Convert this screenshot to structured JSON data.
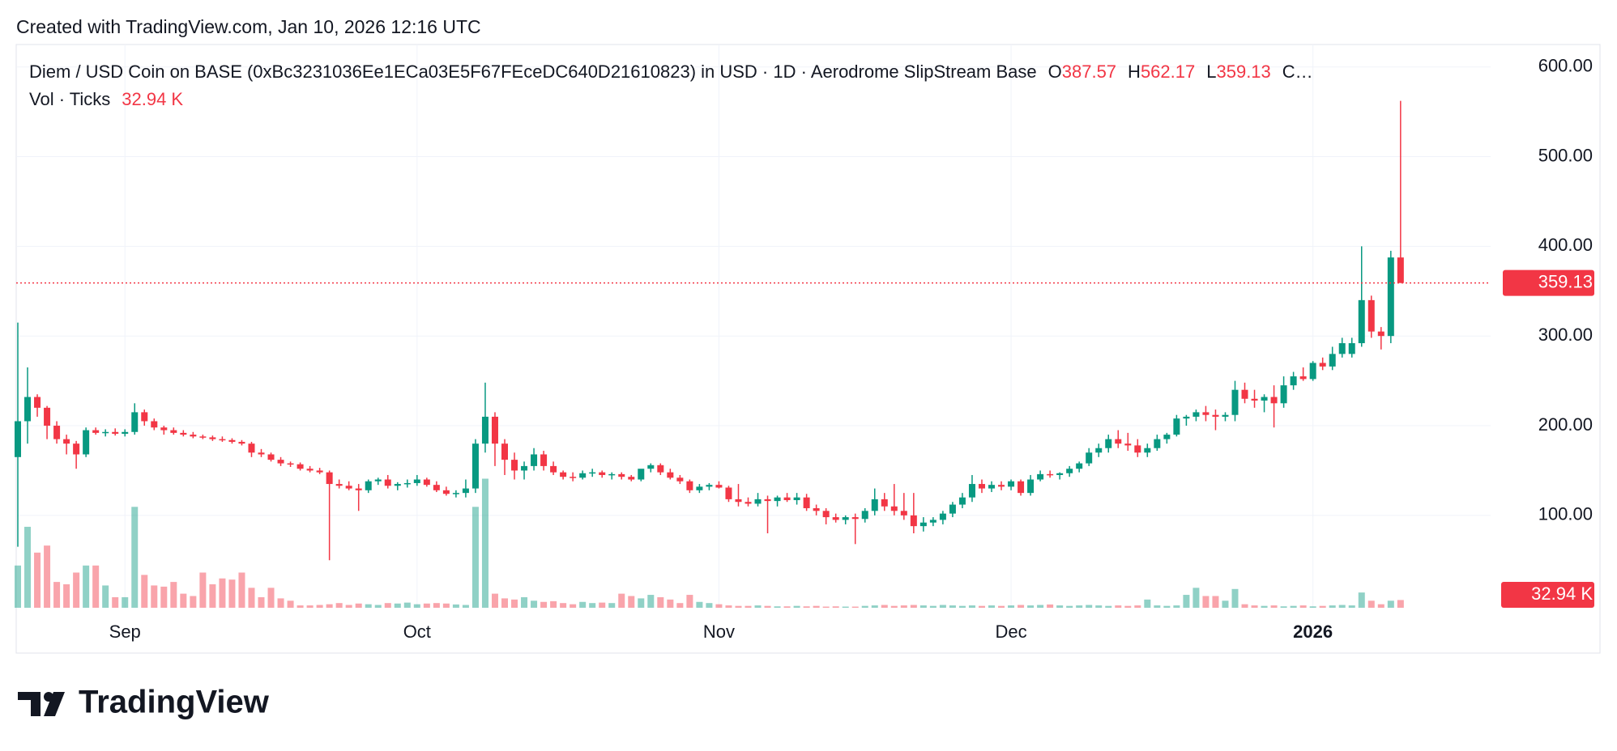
{
  "header": {
    "created": "Created with TradingView.com, Jan 10, 2026 12:16 UTC",
    "brand": "TradingView"
  },
  "chart_data": {
    "type": "candlestick",
    "title": "Diem / USD Coin on BASE (0xBc3231036Ee1ECa03E5F67FEceDC640D21610823) in USD · 1D · Aerodrome SlipStream Base",
    "ohlc_labels": [
      "O",
      "H",
      "L",
      "C…"
    ],
    "volume_title": "Vol · Ticks",
    "volume_label": "32.94 K",
    "up_color": "#089981",
    "down_color": "#f23645",
    "ylim": [
      -3,
      625
    ],
    "yticks": [
      {
        "value": 100,
        "label": "100.00"
      },
      {
        "value": 200,
        "label": "200.00"
      },
      {
        "value": 300,
        "label": "300.00"
      },
      {
        "value": 400,
        "label": "400.00"
      },
      {
        "value": 500,
        "label": "500.00"
      },
      {
        "value": 600,
        "label": "600.00"
      }
    ],
    "volume_lim": [
      0,
      2400
    ],
    "xticks": [
      {
        "value": 11,
        "label": "Sep"
      },
      {
        "value": 41,
        "label": "Oct"
      },
      {
        "value": 72,
        "label": "Nov"
      },
      {
        "value": 102,
        "label": "Dec"
      },
      {
        "value": 133,
        "label": "2026"
      }
    ],
    "grid": true,
    "candles": [
      [
        165,
        315,
        65,
        205,
        180
      ],
      [
        205,
        265,
        180,
        232,
        345
      ],
      [
        232,
        235,
        210,
        220,
        235
      ],
      [
        220,
        222,
        185,
        200,
        265
      ],
      [
        200,
        205,
        180,
        185,
        110
      ],
      [
        185,
        190,
        168,
        180,
        100
      ],
      [
        180,
        183,
        152,
        168,
        150
      ],
      [
        168,
        198,
        165,
        195,
        180
      ],
      [
        195,
        198,
        190,
        192,
        180
      ],
      [
        192,
        196,
        188,
        193,
        95
      ],
      [
        193,
        197,
        189,
        191,
        45
      ],
      [
        191,
        196,
        188,
        193,
        45
      ],
      [
        193,
        225,
        190,
        215,
        430
      ],
      [
        215,
        218,
        200,
        205,
        140
      ],
      [
        205,
        208,
        195,
        198,
        95
      ],
      [
        198,
        200,
        190,
        195,
        90
      ],
      [
        195,
        198,
        190,
        192,
        110
      ],
      [
        192,
        195,
        188,
        190,
        60
      ],
      [
        190,
        193,
        186,
        188,
        50
      ],
      [
        188,
        190,
        185,
        187,
        150
      ],
      [
        187,
        189,
        183,
        185,
        100
      ],
      [
        185,
        188,
        182,
        184,
        125
      ],
      [
        184,
        186,
        180,
        182,
        120
      ],
      [
        182,
        184,
        178,
        180,
        150
      ],
      [
        180,
        182,
        165,
        170,
        85
      ],
      [
        170,
        174,
        165,
        168,
        45
      ],
      [
        168,
        170,
        160,
        162,
        85
      ],
      [
        162,
        165,
        155,
        158,
        40
      ],
      [
        158,
        160,
        154,
        157,
        30
      ],
      [
        157,
        159,
        150,
        152,
        10
      ],
      [
        152,
        155,
        148,
        150,
        10
      ],
      [
        150,
        153,
        146,
        148,
        12
      ],
      [
        148,
        150,
        50,
        135,
        15
      ],
      [
        135,
        140,
        130,
        133,
        20
      ],
      [
        133,
        138,
        128,
        130,
        12
      ],
      [
        130,
        135,
        105,
        128,
        18
      ],
      [
        128,
        140,
        125,
        138,
        15
      ],
      [
        138,
        142,
        134,
        140,
        12
      ],
      [
        140,
        145,
        130,
        133,
        20
      ],
      [
        133,
        137,
        128,
        135,
        18
      ],
      [
        135,
        140,
        131,
        136,
        22
      ],
      [
        136,
        145,
        133,
        140,
        15
      ],
      [
        140,
        142,
        132,
        134,
        18
      ],
      [
        134,
        138,
        126,
        128,
        20
      ],
      [
        128,
        132,
        122,
        124,
        18
      ],
      [
        124,
        128,
        120,
        125,
        14
      ],
      [
        125,
        140,
        120,
        130,
        12
      ],
      [
        130,
        185,
        125,
        180,
        430
      ],
      [
        180,
        248,
        170,
        210,
        550
      ],
      [
        210,
        215,
        155,
        180,
        60
      ],
      [
        180,
        185,
        145,
        162,
        40
      ],
      [
        162,
        170,
        140,
        150,
        35
      ],
      [
        150,
        160,
        140,
        155,
        45
      ],
      [
        155,
        175,
        150,
        168,
        30
      ],
      [
        168,
        172,
        150,
        155,
        25
      ],
      [
        155,
        160,
        145,
        148,
        28
      ],
      [
        148,
        150,
        140,
        143,
        20
      ],
      [
        143,
        148,
        138,
        142,
        15
      ],
      [
        142,
        150,
        140,
        147,
        25
      ],
      [
        147,
        152,
        143,
        148,
        20
      ],
      [
        148,
        150,
        142,
        145,
        22
      ],
      [
        145,
        148,
        140,
        146,
        20
      ],
      [
        146,
        148,
        140,
        143,
        60
      ],
      [
        143,
        145,
        138,
        140,
        50
      ],
      [
        140,
        150,
        138,
        152,
        40
      ],
      [
        152,
        158,
        148,
        156,
        55
      ],
      [
        156,
        158,
        145,
        148,
        45
      ],
      [
        148,
        152,
        140,
        142,
        35
      ],
      [
        142,
        145,
        135,
        138,
        20
      ],
      [
        138,
        140,
        125,
        128,
        55
      ],
      [
        128,
        135,
        125,
        132,
        25
      ],
      [
        132,
        136,
        128,
        134,
        20
      ],
      [
        134,
        138,
        130,
        131,
        15
      ],
      [
        131,
        133,
        115,
        118,
        10
      ],
      [
        118,
        135,
        110,
        115,
        8
      ],
      [
        115,
        120,
        110,
        113,
        8
      ],
      [
        113,
        125,
        110,
        118,
        10
      ],
      [
        118,
        122,
        80,
        116,
        8
      ],
      [
        116,
        122,
        110,
        120,
        6
      ],
      [
        120,
        125,
        115,
        117,
        6
      ],
      [
        117,
        125,
        112,
        120,
        8
      ],
      [
        120,
        124,
        105,
        108,
        6
      ],
      [
        108,
        112,
        100,
        105,
        8
      ],
      [
        105,
        108,
        90,
        98,
        5
      ],
      [
        98,
        102,
        92,
        95,
        6
      ],
      [
        95,
        100,
        90,
        98,
        5
      ],
      [
        98,
        102,
        68,
        96,
        5
      ],
      [
        96,
        108,
        92,
        105,
        8
      ],
      [
        105,
        130,
        100,
        118,
        10
      ],
      [
        118,
        125,
        105,
        110,
        12
      ],
      [
        110,
        135,
        100,
        105,
        8
      ],
      [
        105,
        125,
        95,
        100,
        10
      ],
      [
        100,
        125,
        80,
        88,
        12
      ],
      [
        88,
        98,
        82,
        92,
        10
      ],
      [
        92,
        98,
        88,
        95,
        8
      ],
      [
        95,
        105,
        90,
        102,
        12
      ],
      [
        102,
        115,
        98,
        112,
        10
      ],
      [
        112,
        125,
        108,
        120,
        8
      ],
      [
        120,
        145,
        115,
        135,
        10
      ],
      [
        135,
        140,
        125,
        130,
        8
      ],
      [
        130,
        138,
        126,
        134,
        10
      ],
      [
        134,
        138,
        128,
        132,
        8
      ],
      [
        132,
        140,
        128,
        138,
        10
      ],
      [
        138,
        140,
        122,
        125,
        12
      ],
      [
        125,
        145,
        122,
        140,
        10
      ],
      [
        140,
        150,
        138,
        146,
        12
      ],
      [
        146,
        150,
        142,
        145,
        14
      ],
      [
        145,
        148,
        140,
        147,
        10
      ],
      [
        147,
        155,
        143,
        152,
        8
      ],
      [
        152,
        160,
        148,
        158,
        10
      ],
      [
        158,
        175,
        155,
        170,
        12
      ],
      [
        170,
        180,
        165,
        175,
        10
      ],
      [
        175,
        190,
        170,
        185,
        8
      ],
      [
        185,
        195,
        175,
        180,
        10
      ],
      [
        180,
        192,
        172,
        178,
        8
      ],
      [
        178,
        185,
        165,
        170,
        10
      ],
      [
        170,
        180,
        165,
        175,
        35
      ],
      [
        175,
        190,
        172,
        185,
        10
      ],
      [
        185,
        192,
        180,
        190,
        8
      ],
      [
        190,
        212,
        188,
        208,
        10
      ],
      [
        208,
        212,
        200,
        210,
        55
      ],
      [
        210,
        218,
        205,
        215,
        85
      ],
      [
        215,
        222,
        205,
        212,
        50
      ],
      [
        212,
        218,
        195,
        210,
        50
      ],
      [
        210,
        215,
        205,
        212,
        30
      ],
      [
        212,
        250,
        205,
        240,
        80
      ],
      [
        240,
        248,
        225,
        230,
        15
      ],
      [
        230,
        240,
        220,
        228,
        10
      ],
      [
        228,
        235,
        215,
        232,
        8
      ],
      [
        232,
        245,
        198,
        225,
        10
      ],
      [
        225,
        255,
        220,
        245,
        6
      ],
      [
        245,
        260,
        240,
        255,
        8
      ],
      [
        255,
        265,
        250,
        252,
        10
      ],
      [
        252,
        272,
        250,
        270,
        6
      ],
      [
        270,
        276,
        262,
        266,
        8
      ],
      [
        266,
        288,
        262,
        280,
        10
      ],
      [
        280,
        298,
        276,
        292,
        12
      ],
      [
        280,
        298,
        276,
        292,
        10
      ],
      [
        292,
        400,
        288,
        340,
        65
      ],
      [
        340,
        345,
        298,
        305,
        30
      ],
      [
        305,
        310,
        285,
        300,
        15
      ],
      [
        300,
        395,
        292,
        387.57,
        30
      ],
      [
        387.57,
        562.17,
        359.13,
        359.13,
        32.94
      ]
    ]
  }
}
